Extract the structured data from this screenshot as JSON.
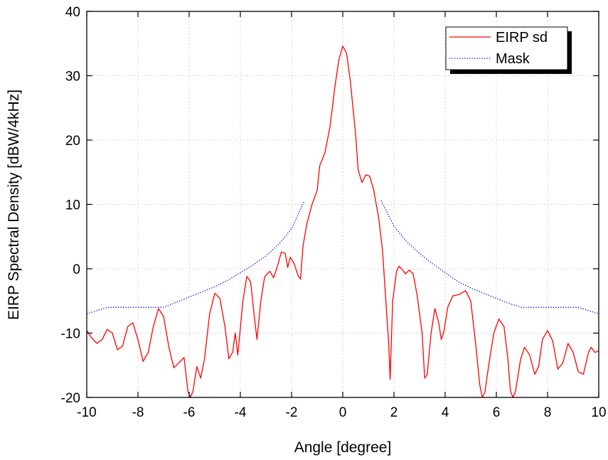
{
  "chart_data": {
    "type": "line",
    "title": "",
    "xlabel": "Angle [degree]",
    "ylabel": "EIRP Spectral Density [dBW/4kHz]",
    "xlim": [
      -10,
      10
    ],
    "ylim": [
      -20,
      40
    ],
    "xticks": [
      -10,
      -8,
      -6,
      -4,
      -2,
      0,
      2,
      4,
      6,
      8,
      10
    ],
    "yticks": [
      -20,
      -10,
      0,
      10,
      20,
      30,
      40
    ],
    "grid": true,
    "legend": {
      "position": "top-right",
      "entries": [
        "EIRP sd",
        "Mask"
      ]
    },
    "series": [
      {
        "name": "EIRP sd",
        "color": "#ff0000",
        "style": "solid",
        "points": [
          [
            -10,
            -9.6
          ],
          [
            -9.8,
            -10.8
          ],
          [
            -9.6,
            -11.6
          ],
          [
            -9.4,
            -11.0
          ],
          [
            -9.2,
            -9.4
          ],
          [
            -9.0,
            -10.0
          ],
          [
            -8.8,
            -12.6
          ],
          [
            -8.6,
            -12.0
          ],
          [
            -8.4,
            -9.0
          ],
          [
            -8.2,
            -8.4
          ],
          [
            -8.0,
            -11.0
          ],
          [
            -7.8,
            -14.4
          ],
          [
            -7.6,
            -13.0
          ],
          [
            -7.4,
            -9.0
          ],
          [
            -7.2,
            -6.2
          ],
          [
            -7.0,
            -7.4
          ],
          [
            -6.8,
            -12.0
          ],
          [
            -6.6,
            -15.4
          ],
          [
            -6.4,
            -14.6
          ],
          [
            -6.2,
            -13.8
          ],
          [
            -6.05,
            -19.0
          ],
          [
            -5.95,
            -20.0
          ],
          [
            -5.85,
            -19.0
          ],
          [
            -5.7,
            -15.2
          ],
          [
            -5.55,
            -17.0
          ],
          [
            -5.4,
            -14.0
          ],
          [
            -5.2,
            -7.0
          ],
          [
            -5.0,
            -3.8
          ],
          [
            -4.8,
            -4.6
          ],
          [
            -4.6,
            -9.0
          ],
          [
            -4.45,
            -14.0
          ],
          [
            -4.3,
            -13.0
          ],
          [
            -4.2,
            -10.0
          ],
          [
            -4.1,
            -13.4
          ],
          [
            -3.9,
            -5.0
          ],
          [
            -3.75,
            -1.2
          ],
          [
            -3.6,
            -2.0
          ],
          [
            -3.45,
            -7.6
          ],
          [
            -3.35,
            -11.0
          ],
          [
            -3.2,
            -5.0
          ],
          [
            -3.05,
            -1.2
          ],
          [
            -2.85,
            -0.4
          ],
          [
            -2.7,
            -1.4
          ],
          [
            -2.55,
            0.4
          ],
          [
            -2.4,
            2.6
          ],
          [
            -2.25,
            2.4
          ],
          [
            -2.15,
            0.2
          ],
          [
            -2.05,
            1.8
          ],
          [
            -1.9,
            0.8
          ],
          [
            -1.75,
            -1.0
          ],
          [
            -1.65,
            -1.6
          ],
          [
            -1.55,
            3.6
          ],
          [
            -1.4,
            7.0
          ],
          [
            -1.2,
            10.0
          ],
          [
            -1.0,
            12.2
          ],
          [
            -0.9,
            16.0
          ],
          [
            -0.7,
            18.0
          ],
          [
            -0.5,
            22.0
          ],
          [
            -0.3,
            28.5
          ],
          [
            -0.15,
            32.5
          ],
          [
            0.0,
            34.6
          ],
          [
            0.15,
            33.5
          ],
          [
            0.3,
            29.0
          ],
          [
            0.5,
            21.0
          ],
          [
            0.6,
            15.4
          ],
          [
            0.75,
            13.4
          ],
          [
            0.9,
            14.6
          ],
          [
            1.05,
            14.4
          ],
          [
            1.2,
            12.4
          ],
          [
            1.4,
            8.0
          ],
          [
            1.55,
            3.0
          ],
          [
            1.7,
            -6.0
          ],
          [
            1.8,
            -12.0
          ],
          [
            1.85,
            -17.2
          ],
          [
            1.95,
            -5.0
          ],
          [
            2.1,
            -0.4
          ],
          [
            2.2,
            0.4
          ],
          [
            2.3,
            0.0
          ],
          [
            2.45,
            -0.8
          ],
          [
            2.6,
            -0.2
          ],
          [
            2.75,
            -0.8
          ],
          [
            2.9,
            -4.0
          ],
          [
            3.1,
            -10.0
          ],
          [
            3.2,
            -17.0
          ],
          [
            3.3,
            -16.4
          ],
          [
            3.45,
            -10.0
          ],
          [
            3.6,
            -6.2
          ],
          [
            3.75,
            -8.4
          ],
          [
            3.85,
            -11.0
          ],
          [
            3.95,
            -9.8
          ],
          [
            4.1,
            -6.0
          ],
          [
            4.3,
            -4.2
          ],
          [
            4.55,
            -4.0
          ],
          [
            4.8,
            -3.4
          ],
          [
            5.0,
            -5.0
          ],
          [
            5.2,
            -12.0
          ],
          [
            5.35,
            -18.0
          ],
          [
            5.45,
            -20.0
          ],
          [
            5.55,
            -19.2
          ],
          [
            5.7,
            -15.0
          ],
          [
            5.9,
            -10.0
          ],
          [
            6.1,
            -7.8
          ],
          [
            6.3,
            -9.0
          ],
          [
            6.45,
            -14.0
          ],
          [
            6.55,
            -19.0
          ],
          [
            6.65,
            -20.0
          ],
          [
            6.75,
            -19.0
          ],
          [
            6.95,
            -14.0
          ],
          [
            7.1,
            -12.2
          ],
          [
            7.3,
            -13.4
          ],
          [
            7.5,
            -16.4
          ],
          [
            7.65,
            -15.2
          ],
          [
            7.8,
            -11.0
          ],
          [
            8.0,
            -9.6
          ],
          [
            8.2,
            -11.2
          ],
          [
            8.4,
            -15.6
          ],
          [
            8.6,
            -14.6
          ],
          [
            8.8,
            -11.6
          ],
          [
            9.0,
            -13.0
          ],
          [
            9.2,
            -16.0
          ],
          [
            9.4,
            -16.4
          ],
          [
            9.6,
            -13.0
          ],
          [
            9.7,
            -12.2
          ],
          [
            9.85,
            -13.0
          ],
          [
            10.0,
            -12.8
          ]
        ]
      },
      {
        "name": "Mask",
        "color": "#0000ff",
        "style": "dotted",
        "segments": [
          [
            [
              -10,
              -7.0
            ],
            [
              -9.2,
              -6.0
            ],
            [
              -9.0,
              -6.0
            ],
            [
              -8.0,
              -6.0
            ],
            [
              -7.0,
              -6.0
            ],
            [
              -6.5,
              -5.2
            ],
            [
              -6.0,
              -4.4
            ],
            [
              -5.5,
              -3.6
            ],
            [
              -5.0,
              -2.8
            ],
            [
              -4.5,
              -1.8
            ],
            [
              -4.0,
              -0.6
            ],
            [
              -3.5,
              0.6
            ],
            [
              -3.0,
              2.0
            ],
            [
              -2.5,
              3.8
            ],
            [
              -2.0,
              6.2
            ],
            [
              -1.5,
              10.6
            ]
          ],
          [
            [
              1.5,
              10.6
            ],
            [
              2.0,
              6.6
            ],
            [
              2.5,
              4.2
            ],
            [
              3.0,
              2.4
            ],
            [
              3.5,
              0.8
            ],
            [
              4.0,
              -0.6
            ],
            [
              4.5,
              -2.0
            ],
            [
              5.0,
              -3.0
            ],
            [
              5.5,
              -3.8
            ],
            [
              6.0,
              -4.6
            ],
            [
              6.5,
              -5.4
            ],
            [
              7.0,
              -6.0
            ],
            [
              8.0,
              -6.0
            ],
            [
              9.0,
              -6.0
            ],
            [
              9.2,
              -6.0
            ],
            [
              10.0,
              -7.0
            ]
          ]
        ]
      }
    ]
  }
}
